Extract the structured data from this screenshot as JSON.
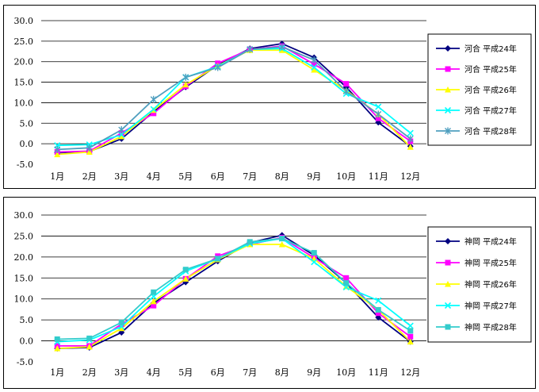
{
  "chart_data": [
    {
      "type": "line",
      "categories": [
        "1月",
        "2月",
        "3月",
        "4月",
        "5月",
        "6月",
        "7月",
        "8月",
        "9月",
        "10月",
        "11月",
        "12月"
      ],
      "ylim": [
        -5,
        30
      ],
      "yticks": [
        "30.0",
        "25.0",
        "20.0",
        "15.0",
        "10.0",
        "5.0",
        "0.0",
        "-5.0"
      ],
      "grid": true,
      "legend_position": "right",
      "series": [
        {
          "name": "河合 平成24年",
          "color": "#000080",
          "marker": "diamond",
          "values": [
            -2.2,
            -1.9,
            1.2,
            7.8,
            13.8,
            19.2,
            23.2,
            24.4,
            21.0,
            13.8,
            5.2,
            -0.6
          ]
        },
        {
          "name": "河合 平成25年",
          "color": "#ff00ff",
          "marker": "square",
          "values": [
            -2.0,
            -1.8,
            2.6,
            7.4,
            14.0,
            19.6,
            23.0,
            23.8,
            19.4,
            14.6,
            6.2,
            0.6
          ]
        },
        {
          "name": "河合 平成26年",
          "color": "#ffff00",
          "marker": "triangle",
          "values": [
            -2.6,
            -2.0,
            1.8,
            8.2,
            14.4,
            19.0,
            22.8,
            22.8,
            18.0,
            13.0,
            7.2,
            -0.8
          ]
        },
        {
          "name": "河合 平成27年",
          "color": "#00ffff",
          "marker": "x",
          "values": [
            -0.4,
            -0.2,
            2.2,
            8.4,
            16.2,
            18.8,
            23.0,
            23.2,
            18.6,
            12.2,
            9.0,
            2.6
          ]
        },
        {
          "name": "河合 平成28年",
          "color": "#4f9fbf",
          "marker": "star",
          "values": [
            -1.4,
            -1.0,
            3.4,
            10.8,
            16.2,
            18.6,
            23.0,
            23.6,
            20.4,
            12.8,
            7.2,
            1.2
          ]
        }
      ]
    },
    {
      "type": "line",
      "categories": [
        "1月",
        "2月",
        "3月",
        "4月",
        "5月",
        "6月",
        "7月",
        "8月",
        "9月",
        "10月",
        "11月",
        "12月"
      ],
      "ylim": [
        -5,
        30
      ],
      "yticks": [
        "30.0",
        "25.0",
        "20.0",
        "15.0",
        "10.0",
        "5.0",
        "0.0",
        "-5.0"
      ],
      "grid": true,
      "legend_position": "right",
      "series": [
        {
          "name": "神岡 平成24年",
          "color": "#000080",
          "marker": "diamond",
          "values": [
            -1.8,
            -1.6,
            2.0,
            9.0,
            14.0,
            19.0,
            23.4,
            25.2,
            20.4,
            13.8,
            5.6,
            -0.2
          ]
        },
        {
          "name": "神岡 平成25年",
          "color": "#ff00ff",
          "marker": "square",
          "values": [
            -1.2,
            -1.2,
            4.0,
            8.4,
            14.8,
            20.2,
            23.0,
            24.6,
            19.8,
            15.0,
            6.6,
            1.0
          ]
        },
        {
          "name": "神岡 平成26年",
          "color": "#ffff00",
          "marker": "triangle",
          "values": [
            -1.8,
            -1.4,
            3.0,
            9.4,
            14.8,
            19.4,
            23.0,
            23.0,
            19.6,
            13.0,
            7.4,
            -0.2
          ]
        },
        {
          "name": "神岡 平成27年",
          "color": "#00ffff",
          "marker": "x",
          "values": [
            -0.2,
            0.2,
            3.4,
            10.6,
            16.6,
            19.6,
            23.2,
            24.4,
            18.8,
            12.8,
            9.6,
            3.6
          ]
        },
        {
          "name": "神岡 平成28年",
          "color": "#33cccc",
          "marker": "square",
          "values": [
            0.4,
            0.6,
            4.4,
            11.6,
            17.0,
            19.6,
            23.6,
            24.4,
            21.0,
            13.8,
            7.4,
            2.4
          ]
        }
      ]
    }
  ]
}
